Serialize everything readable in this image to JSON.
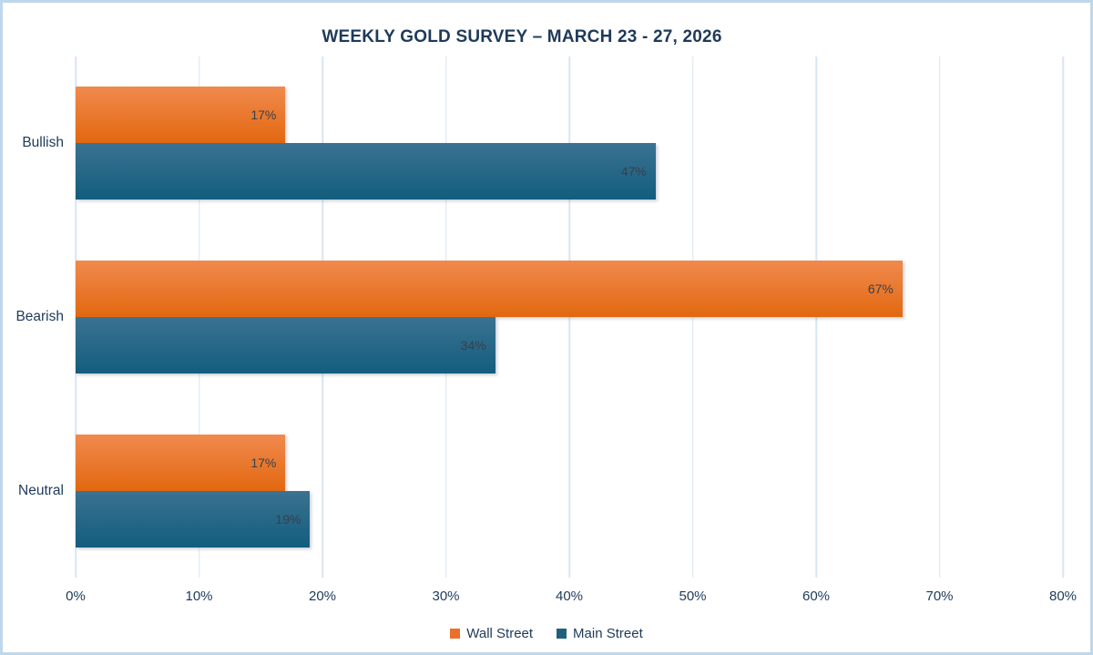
{
  "chart_data": {
    "type": "bar",
    "orientation": "horizontal",
    "title": "WEEKLY GOLD SURVEY – MARCH 23 - 27, 2026",
    "categories": [
      "Bullish",
      "Bearish",
      "Neutral"
    ],
    "series": [
      {
        "name": "Wall Street",
        "color": "#e8702a",
        "gradient_top": "#f08a4e",
        "gradient_bottom": "#e2680f",
        "values": [
          17,
          67,
          17
        ],
        "data_labels": [
          "17%",
          "67%",
          "17%"
        ]
      },
      {
        "name": "Main Street",
        "color": "#20607f",
        "gradient_top": "#3b7291",
        "gradient_bottom": "#135d7e",
        "values": [
          47,
          34,
          19
        ],
        "data_labels": [
          "47%",
          "34%",
          "19%"
        ]
      }
    ],
    "xlim": [
      0,
      80
    ],
    "x_ticks": [
      "0%",
      "10%",
      "20%",
      "30%",
      "40%",
      "50%",
      "60%",
      "70%",
      "80%"
    ],
    "grid": "vertical",
    "legend_position": "bottom",
    "legend_entries": [
      "Wall Street",
      "Main Street"
    ]
  },
  "colors": {
    "canvas_border": "#bfd7eb",
    "gridline": "#d8e6f4",
    "title_text": "#1e3a5a",
    "axis_text": "#1e3a5a",
    "data_label_text": "#39404a",
    "background": "#ffffff"
  }
}
